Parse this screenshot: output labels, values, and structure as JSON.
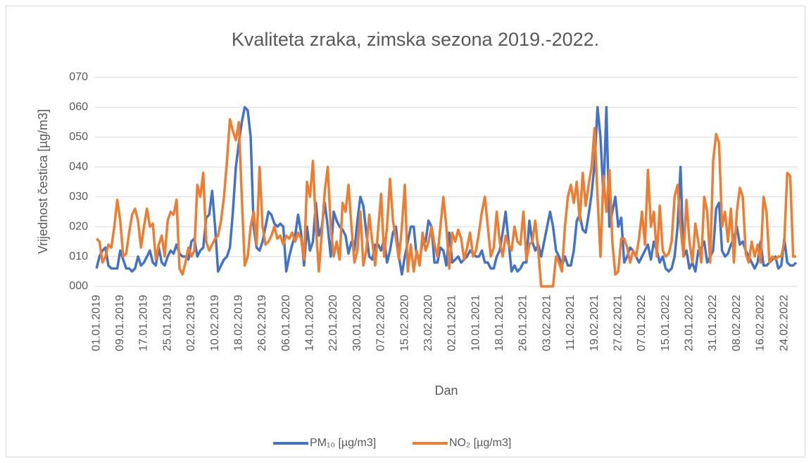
{
  "chart_data": {
    "type": "line",
    "title": "Kvaliteta zraka, zimska sezona 2019.-2022.",
    "y_label": "Vrijednost čestica  [µg/m3]",
    "x_label": "Dan",
    "ylim": [
      0,
      70
    ],
    "yticks": [
      {
        "value": 0,
        "label": "000"
      },
      {
        "value": 10,
        "label": "010"
      },
      {
        "value": 20,
        "label": "020"
      },
      {
        "value": 30,
        "label": "030"
      },
      {
        "value": 40,
        "label": "040"
      },
      {
        "value": 50,
        "label": "050"
      },
      {
        "value": 60,
        "label": "060"
      },
      {
        "value": 70,
        "label": "070"
      }
    ],
    "grid": true,
    "legend": "bottom",
    "categories": [
      "01.01.2019",
      null,
      null,
      null,
      null,
      null,
      null,
      null,
      "09.01.2019",
      null,
      null,
      null,
      null,
      null,
      null,
      null,
      "17.01.2019",
      null,
      null,
      null,
      null,
      null,
      null,
      null,
      "25.01.2019",
      null,
      null,
      null,
      null,
      null,
      null,
      null,
      "02.02.2019",
      null,
      null,
      null,
      null,
      null,
      null,
      null,
      "10.02.2019",
      null,
      null,
      null,
      null,
      null,
      null,
      null,
      "18.02.2019",
      null,
      null,
      null,
      null,
      null,
      null,
      null,
      "26.02.2019",
      null,
      null,
      null,
      null,
      null,
      null,
      null,
      "06.01.2020",
      null,
      null,
      null,
      null,
      null,
      null,
      null,
      "14.01.2020",
      null,
      null,
      null,
      null,
      null,
      null,
      null,
      "22.01.2020",
      null,
      null,
      null,
      null,
      null,
      null,
      null,
      "30.01.2020",
      null,
      null,
      null,
      null,
      null,
      null,
      null,
      "07.02.2020",
      null,
      null,
      null,
      null,
      null,
      null,
      null,
      "15.02.2020",
      null,
      null,
      null,
      null,
      null,
      null,
      null,
      "23.02.2020",
      null,
      null,
      null,
      null,
      null,
      null,
      null,
      "02.01.2021",
      null,
      null,
      null,
      null,
      null,
      null,
      null,
      "10.01.2021",
      null,
      null,
      null,
      null,
      null,
      null,
      null,
      "18.01.2021",
      null,
      null,
      null,
      null,
      null,
      null,
      null,
      "26.01.2021",
      null,
      null,
      null,
      null,
      null,
      null,
      null,
      "03.02.2021",
      null,
      null,
      null,
      null,
      null,
      null,
      null,
      "11.02.2021",
      null,
      null,
      null,
      null,
      null,
      null,
      null,
      "19.02.2021",
      null,
      null,
      null,
      null,
      null,
      null,
      null,
      "27.02.2021",
      null,
      null,
      null,
      null,
      null,
      null,
      null,
      "07.01.2022",
      null,
      null,
      null,
      null,
      null,
      null,
      null,
      "15.01.2022",
      null,
      null,
      null,
      null,
      null,
      null,
      null,
      "23.01.2022",
      null,
      null,
      null,
      null,
      null,
      null,
      null,
      "31.01.2022",
      null,
      null,
      null,
      null,
      null,
      null,
      null,
      "08.02.2022",
      null,
      null,
      null,
      null,
      null,
      null,
      null,
      "16.02.2022",
      null,
      null,
      null,
      null,
      null,
      null,
      null,
      "24.02.2022",
      null,
      null,
      null,
      null
    ],
    "series": [
      {
        "name": "PM₁₀ [µg/m3]",
        "color": "#4472c4",
        "values": [
          6,
          10,
          12,
          13,
          7,
          6,
          6,
          6,
          12,
          9,
          6,
          6,
          5,
          6,
          10,
          7,
          8,
          10,
          12,
          8,
          7,
          13,
          8,
          7,
          10,
          12,
          11,
          14,
          11,
          10,
          10,
          9,
          15,
          16,
          10,
          12,
          13,
          23,
          24,
          32,
          20,
          5,
          7,
          9,
          10,
          13,
          25,
          40,
          48,
          55,
          60,
          59,
          50,
          20,
          13,
          12,
          15,
          20,
          25,
          24,
          21,
          20,
          21,
          20,
          5,
          10,
          14,
          17,
          24,
          18,
          7,
          20,
          12,
          15,
          28,
          17,
          20,
          28,
          20,
          10,
          25,
          22,
          20,
          19,
          17,
          11,
          15,
          12,
          22,
          30,
          27,
          18,
          10,
          9,
          14,
          14,
          12,
          16,
          8,
          12,
          18,
          20,
          10,
          4,
          10,
          15,
          20,
          20,
          10,
          9,
          15,
          15,
          22,
          20,
          8,
          8,
          13,
          12,
          7,
          18,
          8,
          9,
          10,
          8,
          9,
          10,
          12,
          11,
          10,
          10,
          12,
          8,
          8,
          6,
          6,
          10,
          12,
          18,
          25,
          15,
          5,
          7,
          5,
          6,
          8,
          8,
          22,
          15,
          12,
          14,
          10,
          15,
          20,
          25,
          20,
          12,
          10,
          7,
          10,
          7,
          7,
          12,
          22,
          24,
          19,
          18,
          24,
          31,
          41,
          60,
          50,
          30,
          60,
          20,
          25,
          30,
          20,
          23,
          8,
          10,
          13,
          12,
          10,
          8,
          10,
          12,
          14,
          9,
          15,
          12,
          8,
          10,
          6,
          5,
          6,
          10,
          20,
          40,
          10,
          12,
          6,
          8,
          5,
          12,
          13,
          15,
          8,
          10,
          12,
          26,
          28,
          12,
          10,
          11,
          14,
          16,
          20,
          14,
          15,
          12,
          10,
          8,
          6,
          8,
          15,
          7,
          7,
          8,
          9,
          10,
          6,
          7,
          16,
          8,
          7,
          7,
          8
        ]
      },
      {
        "name": "NO₂ [µg/m3]",
        "color": "#ed7d31",
        "values": [
          16,
          15,
          8,
          10,
          14,
          13,
          20,
          29,
          22,
          10,
          11,
          18,
          24,
          26,
          22,
          13,
          20,
          26,
          20,
          21,
          9,
          14,
          17,
          10,
          22,
          25,
          24,
          29,
          6,
          4,
          8,
          13,
          10,
          12,
          34,
          30,
          38,
          15,
          12,
          14,
          16,
          17,
          22,
          30,
          42,
          56,
          52,
          49,
          55,
          30,
          7,
          10,
          20,
          25,
          14,
          40,
          20,
          14,
          15,
          17,
          20,
          16,
          17,
          14,
          17,
          16,
          18,
          15,
          18,
          16,
          9,
          35,
          30,
          42,
          20,
          5,
          18,
          32,
          40,
          20,
          10,
          15,
          9,
          28,
          25,
          34,
          20,
          8,
          12,
          25,
          7,
          12,
          24,
          15,
          7,
          19,
          31,
          10,
          20,
          36,
          22,
          16,
          9,
          20,
          34,
          5,
          14,
          5,
          12,
          7,
          18,
          12,
          15,
          20,
          14,
          10,
          20,
          30,
          20,
          6,
          18,
          15,
          19,
          16,
          9,
          13,
          18,
          10,
          12,
          18,
          25,
          30,
          20,
          10,
          13,
          25,
          15,
          10,
          17,
          14,
          12,
          20,
          15,
          14,
          25,
          9,
          14,
          15,
          22,
          12,
          0,
          0,
          0,
          0,
          0,
          10,
          8,
          5,
          20,
          30,
          34,
          28,
          35,
          22,
          38,
          27,
          34,
          40,
          53,
          30,
          10,
          37,
          25,
          39,
          15,
          4,
          5,
          16,
          16,
          13,
          8,
          12,
          10,
          16,
          25,
          14,
          39,
          20,
          25,
          10,
          27,
          12,
          10,
          11,
          15,
          30,
          34,
          20,
          10,
          29,
          15,
          8,
          21,
          15,
          8,
          30,
          25,
          8,
          42,
          51,
          48,
          20,
          25,
          15,
          26,
          8,
          25,
          33,
          30,
          11,
          8,
          15,
          10,
          14,
          8,
          30,
          25,
          8,
          10,
          9,
          10,
          10,
          15,
          38,
          37,
          10,
          10
        ]
      }
    ]
  }
}
